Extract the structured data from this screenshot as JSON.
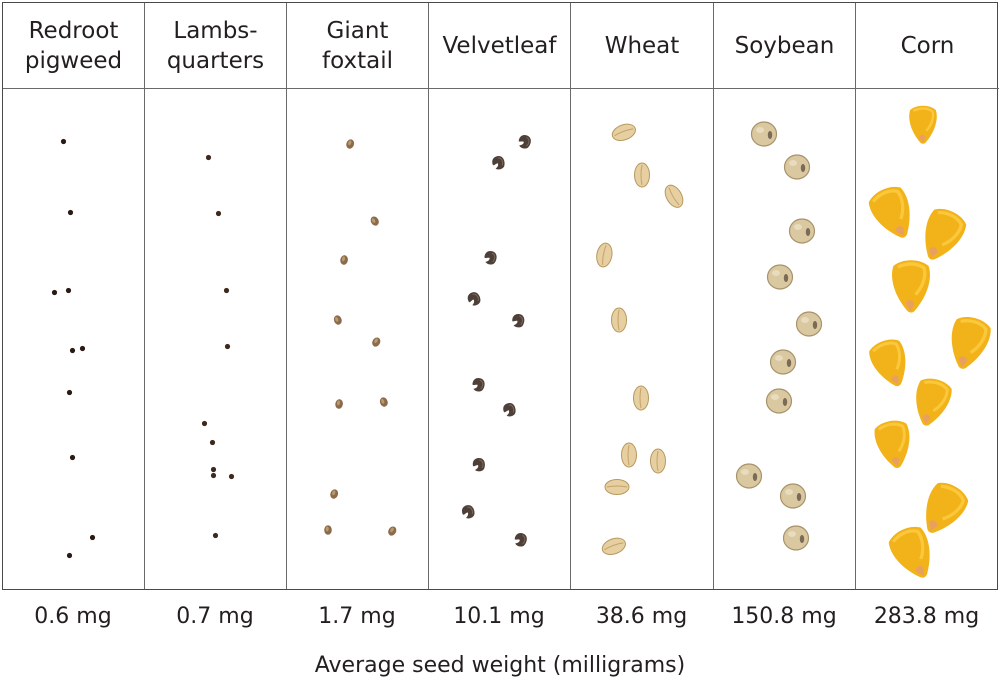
{
  "figure": {
    "axis_title": "Average seed weight (milligrams)",
    "columns": [
      {
        "id": "redroot-pigweed",
        "name_lines": [
          "Redroot",
          "pigweed"
        ],
        "weight": "0.6 mg",
        "seed_color": "#2a1a14",
        "seed_icon": "tiny-dark-seed"
      },
      {
        "id": "lambsquarters",
        "name_lines": [
          "Lambs-",
          "quarters"
        ],
        "weight": "0.7 mg",
        "seed_color": "#3d2a1e",
        "seed_icon": "tiny-dark-seed"
      },
      {
        "id": "giant-foxtail",
        "name_lines": [
          "Giant",
          "foxtail"
        ],
        "weight": "1.7 mg",
        "seed_color": "#8b6b4a",
        "seed_icon": "small-oval-seed"
      },
      {
        "id": "velvetleaf",
        "name_lines": [
          "Velvetleaf"
        ],
        "weight": "10.1 mg",
        "seed_color": "#4e4038",
        "seed_icon": "kidney-seed"
      },
      {
        "id": "wheat",
        "name_lines": [
          "Wheat"
        ],
        "weight": "38.6 mg",
        "seed_color": "#e6cfa0",
        "seed_icon": "grain-seed"
      },
      {
        "id": "soybean",
        "name_lines": [
          "Soybean"
        ],
        "weight": "150.8 mg",
        "seed_color": "#d9c8a0",
        "seed_icon": "round-bean"
      },
      {
        "id": "corn",
        "name_lines": [
          "Corn"
        ],
        "weight": "283.8 mg",
        "seed_color": "#f2b21a",
        "seed_icon": "corn-kernel"
      }
    ]
  }
}
